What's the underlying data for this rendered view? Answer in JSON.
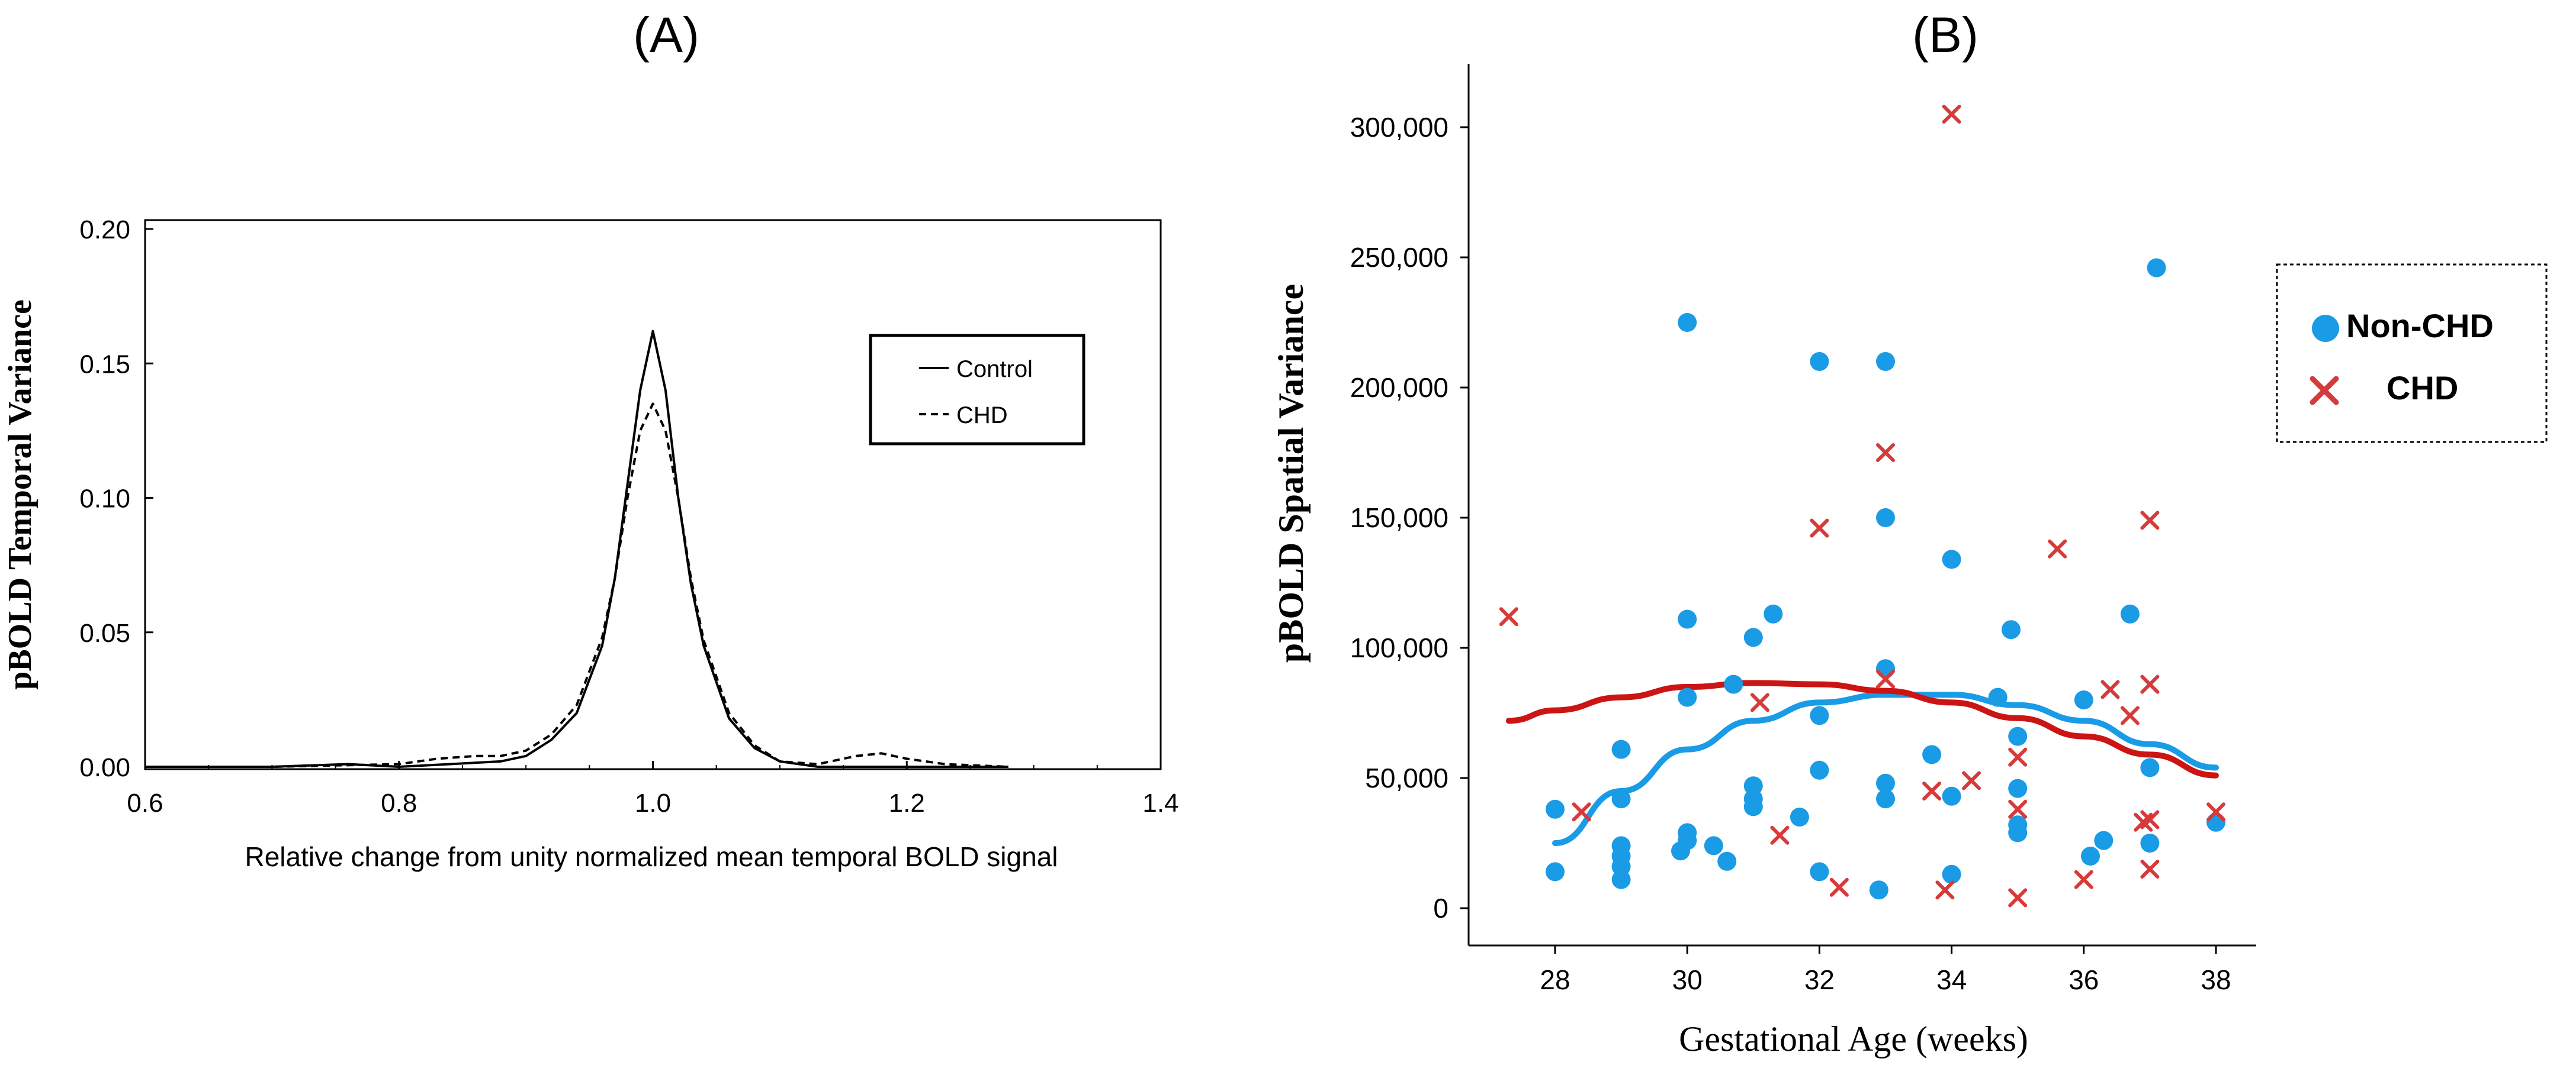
{
  "colors": {
    "black": "#000000",
    "non_chd": "#1a9be5",
    "chd": "#d63a3a",
    "chd_fit": "#cc1414"
  },
  "chart_data": [
    {
      "type": "line",
      "panel_label": "(A)",
      "title": "",
      "xlabel": "Relative change from unity normalized mean temporal BOLD signal",
      "ylabel": "pBOLD Temporal Variance",
      "xlim": [
        0.6,
        1.4
      ],
      "ylim": [
        0.0,
        0.2
      ],
      "x_ticks": [
        "0.6",
        "0.8",
        "1.0",
        "1.2",
        "1.4"
      ],
      "y_ticks": [
        "0.00",
        "0.05",
        "0.10",
        "0.15",
        "0.20"
      ],
      "legend": {
        "position": "top-right",
        "entries": [
          "Control",
          "CHD"
        ]
      },
      "series": [
        {
          "name": "Control",
          "style": "solid",
          "points": [
            [
              0.6,
              0.0
            ],
            [
              0.7,
              0.0
            ],
            [
              0.76,
              0.001
            ],
            [
              0.8,
              0.0
            ],
            [
              0.84,
              0.001
            ],
            [
              0.88,
              0.002
            ],
            [
              0.9,
              0.004
            ],
            [
              0.92,
              0.01
            ],
            [
              0.94,
              0.02
            ],
            [
              0.96,
              0.045
            ],
            [
              0.97,
              0.07
            ],
            [
              0.98,
              0.105
            ],
            [
              0.99,
              0.14
            ],
            [
              1.0,
              0.162
            ],
            [
              1.01,
              0.14
            ],
            [
              1.02,
              0.1
            ],
            [
              1.03,
              0.068
            ],
            [
              1.04,
              0.045
            ],
            [
              1.06,
              0.018
            ],
            [
              1.08,
              0.007
            ],
            [
              1.1,
              0.002
            ],
            [
              1.13,
              0.0
            ],
            [
              1.2,
              0.0
            ],
            [
              1.28,
              0.0
            ]
          ]
        },
        {
          "name": "CHD",
          "style": "dashed",
          "points": [
            [
              0.6,
              0.0
            ],
            [
              0.7,
              0.0
            ],
            [
              0.8,
              0.001
            ],
            [
              0.83,
              0.003
            ],
            [
              0.86,
              0.004
            ],
            [
              0.88,
              0.004
            ],
            [
              0.9,
              0.006
            ],
            [
              0.92,
              0.012
            ],
            [
              0.94,
              0.023
            ],
            [
              0.96,
              0.048
            ],
            [
              0.97,
              0.07
            ],
            [
              0.98,
              0.1
            ],
            [
              0.99,
              0.125
            ],
            [
              1.0,
              0.135
            ],
            [
              1.01,
              0.125
            ],
            [
              1.02,
              0.1
            ],
            [
              1.03,
              0.07
            ],
            [
              1.04,
              0.047
            ],
            [
              1.06,
              0.02
            ],
            [
              1.08,
              0.008
            ],
            [
              1.1,
              0.002
            ],
            [
              1.13,
              0.001
            ],
            [
              1.16,
              0.004
            ],
            [
              1.18,
              0.005
            ],
            [
              1.2,
              0.003
            ],
            [
              1.23,
              0.001
            ],
            [
              1.28,
              0.0
            ]
          ]
        }
      ]
    },
    {
      "type": "scatter",
      "panel_label": "(B)",
      "title": "",
      "xlabel": "Gestational Age (weeks)",
      "ylabel": "pBOLD Spatial Variance",
      "xlim": [
        26.5,
        38.6
      ],
      "ylim": [
        -10000,
        322000
      ],
      "x_ticks": [
        28,
        30,
        32,
        34,
        36,
        38
      ],
      "y_ticks": [
        0,
        50000,
        100000,
        150000,
        200000,
        250000,
        300000
      ],
      "y_tick_labels": [
        "0",
        "50,000",
        "100,000",
        "150,000",
        "200,000",
        "250,000",
        "300,000"
      ],
      "legend": {
        "position": "right",
        "entries": [
          "Non-CHD",
          "CHD"
        ]
      },
      "series": [
        {
          "name": "Non-CHD",
          "marker": "circle",
          "points": [
            [
              28,
              38000
            ],
            [
              28,
              14000
            ],
            [
              29,
              61000
            ],
            [
              29,
              42000
            ],
            [
              29,
              24000
            ],
            [
              29,
              20000
            ],
            [
              29,
              16000
            ],
            [
              29,
              11000
            ],
            [
              29.9,
              22000
            ],
            [
              30,
              111000
            ],
            [
              30,
              81000
            ],
            [
              30,
              29000
            ],
            [
              30,
              26000
            ],
            [
              30,
              225000
            ],
            [
              30.4,
              24000
            ],
            [
              30.6,
              18000
            ],
            [
              30.7,
              86000
            ],
            [
              31,
              104000
            ],
            [
              31,
              47000
            ],
            [
              31,
              42000
            ],
            [
              31,
              39000
            ],
            [
              31.3,
              113000
            ],
            [
              31.7,
              35000
            ],
            [
              32,
              210000
            ],
            [
              32,
              74000
            ],
            [
              32,
              53000
            ],
            [
              32,
              14000
            ],
            [
              32.9,
              7000
            ],
            [
              33,
              210000
            ],
            [
              33,
              150000
            ],
            [
              33,
              92000
            ],
            [
              33,
              48000
            ],
            [
              33,
              42000
            ],
            [
              33.7,
              59000
            ],
            [
              34,
              134000
            ],
            [
              34,
              43000
            ],
            [
              34,
              13000
            ],
            [
              34.7,
              81000
            ],
            [
              34.9,
              107000
            ],
            [
              35,
              66000
            ],
            [
              35,
              46000
            ],
            [
              35,
              32000
            ],
            [
              35,
              29000
            ],
            [
              36,
              80000
            ],
            [
              36.1,
              20000
            ],
            [
              36.3,
              26000
            ],
            [
              36.7,
              113000
            ],
            [
              37,
              54000
            ],
            [
              37,
              25000
            ],
            [
              37.1,
              246000
            ],
            [
              38,
              33000
            ]
          ]
        },
        {
          "name": "CHD",
          "marker": "x",
          "points": [
            [
              27.3,
              112000
            ],
            [
              28.4,
              37000
            ],
            [
              31.1,
              79000
            ],
            [
              31.4,
              28000
            ],
            [
              32,
              146000
            ],
            [
              32.3,
              8000
            ],
            [
              33,
              175000
            ],
            [
              33,
              88000
            ],
            [
              33.7,
              45000
            ],
            [
              33.9,
              7000
            ],
            [
              34,
              305000
            ],
            [
              34.3,
              49000
            ],
            [
              35,
              58000
            ],
            [
              35,
              38000
            ],
            [
              35,
              4000
            ],
            [
              35.6,
              138000
            ],
            [
              36,
              11000
            ],
            [
              36.4,
              84000
            ],
            [
              36.7,
              74000
            ],
            [
              36.9,
              33000
            ],
            [
              37,
              149000
            ],
            [
              37,
              86000
            ],
            [
              37,
              34000
            ],
            [
              37,
              15000
            ],
            [
              38,
              37000
            ]
          ]
        }
      ],
      "fit_curves": [
        {
          "name": "Non-CHD",
          "points": [
            [
              28,
              25000
            ],
            [
              29,
              45000
            ],
            [
              30,
              61000
            ],
            [
              31,
              72000
            ],
            [
              32,
              79000
            ],
            [
              33,
              82000
            ],
            [
              34,
              82000
            ],
            [
              35,
              78000
            ],
            [
              36,
              72000
            ],
            [
              37,
              63000
            ],
            [
              38,
              54000
            ]
          ]
        },
        {
          "name": "CHD",
          "points": [
            [
              27.3,
              72000
            ],
            [
              28,
              76000
            ],
            [
              29,
              81000
            ],
            [
              30,
              85000
            ],
            [
              31,
              86500
            ],
            [
              32,
              86000
            ],
            [
              33,
              83500
            ],
            [
              34,
              79000
            ],
            [
              35,
              73000
            ],
            [
              36,
              66000
            ],
            [
              37,
              59000
            ],
            [
              38,
              51000
            ]
          ]
        }
      ]
    }
  ]
}
